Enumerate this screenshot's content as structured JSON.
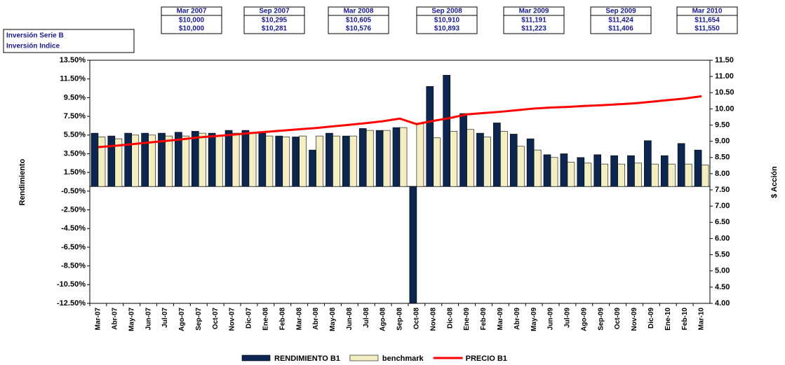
{
  "summary_table": {
    "row_labels": [
      "Inversión Serie B",
      "Inversión Indice"
    ],
    "columns": [
      {
        "header": "Mar 2007",
        "values": [
          "$10,000",
          "$10,000"
        ]
      },
      {
        "header": "Sep 2007",
        "values": [
          "$10,295",
          "$10,281"
        ]
      },
      {
        "header": "Mar 2008",
        "values": [
          "$10,605",
          "$10,576"
        ]
      },
      {
        "header": "Sep 2008",
        "values": [
          "$10,910",
          "$10,893"
        ]
      },
      {
        "header": "Mar 2009",
        "values": [
          "$11,191",
          "$11,223"
        ]
      },
      {
        "header": "Sep 2009",
        "values": [
          "$11,424",
          "$11,406"
        ]
      },
      {
        "header": "Mar 2010",
        "values": [
          "$11,654",
          "$11,550"
        ]
      }
    ]
  },
  "chart_data": {
    "type": "bar",
    "ylabel": "Rendimiento",
    "y2label": "$ Acción",
    "categories": [
      "Mar-07",
      "Abr-07",
      "May-07",
      "Jun-07",
      "Jul-07",
      "Ago-07",
      "Sep-07",
      "Oct-07",
      "Nov-07",
      "Dic-07",
      "Ene-08",
      "Feb-08",
      "Mar-08",
      "Abr-08",
      "May-08",
      "Jun-08",
      "Jul-08",
      "Ago-08",
      "Sep-08",
      "Oct-08",
      "Nov-08",
      "Dic-08",
      "Ene-09",
      "Feb-09",
      "Mar-09",
      "Abr-09",
      "May-09",
      "Jun-09",
      "Jul-09",
      "Ago-09",
      "Sep-09",
      "Oct-09",
      "Nov-09",
      "Dic-09",
      "Ene-10",
      "Feb-10",
      "Mar-10"
    ],
    "series": [
      {
        "name": "RENDIMIENTO B1",
        "color": "#0d2650",
        "values": [
          5.7,
          5.4,
          5.7,
          5.7,
          5.7,
          5.8,
          5.9,
          5.7,
          6.0,
          6.0,
          5.7,
          5.4,
          5.3,
          3.9,
          5.7,
          5.4,
          6.2,
          6.0,
          6.3,
          -12.5,
          10.7,
          11.9,
          7.8,
          5.7,
          6.8,
          5.6,
          5.1,
          3.4,
          3.5,
          3.1,
          3.4,
          3.3,
          3.3,
          4.9,
          3.3,
          4.6,
          3.9
        ]
      },
      {
        "name": "benchmark",
        "color": "#f3efc2",
        "values": [
          5.3,
          5.1,
          5.5,
          5.5,
          5.4,
          5.4,
          5.7,
          5.4,
          5.7,
          5.7,
          5.4,
          5.3,
          5.4,
          5.4,
          5.4,
          5.4,
          6.0,
          6.0,
          6.3,
          6.7,
          5.2,
          5.9,
          6.1,
          5.3,
          5.9,
          4.3,
          3.9,
          3.1,
          2.6,
          2.5,
          2.4,
          2.4,
          2.5,
          2.4,
          2.4,
          2.4,
          2.3
        ]
      },
      {
        "name": "PRECIO B1",
        "color": "#ff0000",
        "type": "line",
        "axis": "y2",
        "values": [
          8.82,
          8.86,
          8.91,
          8.96,
          9.01,
          9.06,
          9.12,
          9.16,
          9.2,
          9.25,
          9.29,
          9.33,
          9.37,
          9.41,
          9.46,
          9.51,
          9.56,
          9.62,
          9.7,
          9.53,
          9.63,
          9.72,
          9.83,
          9.87,
          9.91,
          9.96,
          10.01,
          10.04,
          10.06,
          10.09,
          10.11,
          10.14,
          10.17,
          10.22,
          10.27,
          10.32,
          10.39
        ]
      }
    ],
    "ylim": [
      -12.5,
      13.5
    ],
    "yticks": [
      {
        "value": -12.5,
        "label": "-12.50%"
      },
      {
        "value": -10.5,
        "label": "-10.50%"
      },
      {
        "value": -8.5,
        "label": "-8.50%"
      },
      {
        "value": -6.5,
        "label": "-6.50%"
      },
      {
        "value": -4.5,
        "label": "-4.50%"
      },
      {
        "value": -2.5,
        "label": "-2.50%"
      },
      {
        "value": -0.5,
        "label": "-0.50%"
      },
      {
        "value": 1.5,
        "label": "1.50%"
      },
      {
        "value": 3.5,
        "label": "3.50%"
      },
      {
        "value": 5.5,
        "label": "5.50%"
      },
      {
        "value": 7.5,
        "label": "7.50%"
      },
      {
        "value": 9.5,
        "label": "9.50%"
      },
      {
        "value": 11.5,
        "label": "11.50%"
      },
      {
        "value": 13.5,
        "label": "13.50%"
      }
    ],
    "y2lim": [
      4,
      11.5
    ],
    "y2ticks": [
      {
        "value": 4,
        "label": "4.00"
      },
      {
        "value": 4.5,
        "label": "4.50"
      },
      {
        "value": 5,
        "label": "5.00"
      },
      {
        "value": 5.5,
        "label": "5.50"
      },
      {
        "value": 6,
        "label": "6.00"
      },
      {
        "value": 6.5,
        "label": "6.50"
      },
      {
        "value": 7,
        "label": "7.00"
      },
      {
        "value": 7.5,
        "label": "7.50"
      },
      {
        "value": 8,
        "label": "8.00"
      },
      {
        "value": 8.5,
        "label": "8.50"
      },
      {
        "value": 9,
        "label": "9.00"
      },
      {
        "value": 9.5,
        "label": "9.50"
      },
      {
        "value": 10,
        "label": "10.00"
      },
      {
        "value": 10.5,
        "label": "10.50"
      },
      {
        "value": 11,
        "label": "11.00"
      },
      {
        "value": 11.5,
        "label": "11.50"
      }
    ],
    "grid": false,
    "legend": "bottom"
  }
}
